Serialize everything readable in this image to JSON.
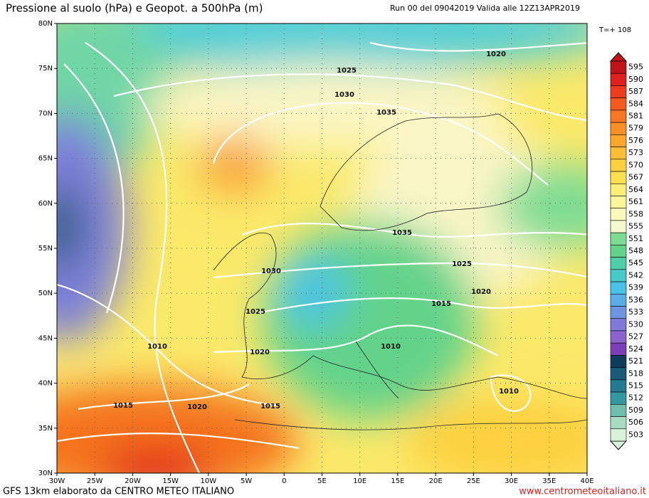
{
  "header": {
    "title": "Pressione al suolo (hPa) e Geopot. a 500hPa (m)",
    "run": "Run 00 del 09042019  Valida alle 12Z13APR2019",
    "forecast_step": "T=+ 108"
  },
  "map": {
    "lat_labels": [
      "80N",
      "75N",
      "70N",
      "65N",
      "60N",
      "55N",
      "50N",
      "45N",
      "40N",
      "35N",
      "30N"
    ],
    "lon_labels": [
      "30W",
      "25W",
      "20W",
      "15W",
      "10W",
      "5W",
      "0",
      "5E",
      "10E",
      "15E",
      "20E",
      "25E",
      "30E",
      "35E",
      "40E"
    ],
    "isobar_labels": [
      "1020",
      "1025",
      "1030",
      "1035",
      "1035",
      "1025",
      "1030",
      "1020",
      "1015",
      "1025",
      "1010",
      "1020",
      "1010",
      "1010",
      "1015",
      "1020",
      "1015"
    ]
  },
  "colorbar": {
    "labels": [
      595,
      590,
      587,
      584,
      581,
      579,
      576,
      573,
      570,
      567,
      564,
      561,
      558,
      555,
      551,
      548,
      545,
      542,
      539,
      536,
      533,
      530,
      527,
      524,
      521,
      518,
      515,
      512,
      509,
      506,
      503
    ],
    "colors": [
      "#c0141a",
      "#e0201e",
      "#f03c1e",
      "#f5591e",
      "#f87722",
      "#f98f26",
      "#fba72c",
      "#fdbd34",
      "#fdd03e",
      "#fde050",
      "#fdee78",
      "#fdf59c",
      "#fbf8bd",
      "#f5f9d0",
      "#7ddc93",
      "#63d38a",
      "#4fcfa8",
      "#46cbc9",
      "#48c3e6",
      "#5aaee8",
      "#6f95e2",
      "#7f7ad8",
      "#8c62cc",
      "#7d3fb8",
      "#0f3c5c",
      "#1a5a78",
      "#237a90",
      "#3399a0",
      "#6fbfac",
      "#a7dcc0",
      "#d9f1d9"
    ]
  },
  "footer": {
    "left": "GFS 13km elaborato da CENTRO METEO ITALIANO",
    "right": "www.centrometeoitaliano.it"
  }
}
